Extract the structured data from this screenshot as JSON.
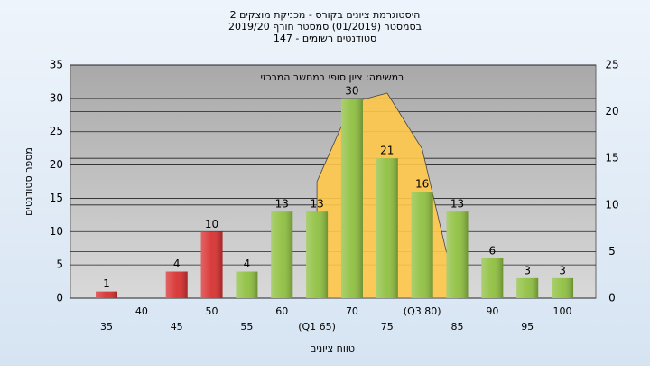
{
  "chart_data": {
    "type": "bar",
    "title": [
      "היסטוגרמת ציונים בקורס - מכניקת מוצקים 2",
      "בסמסטר  (01/2019)  סמסטר חורף 2019/20",
      "סטודנטים רשומים - 147"
    ],
    "annotation": "במשימה: ציון סופי במחשב המרכזי",
    "x_label": "טווח ציונים",
    "y_label": "מספר סטודנטים",
    "categories": [
      "35",
      "40",
      "45",
      "50",
      "55",
      "60",
      "(Q1 65)",
      "70",
      "75",
      "(Q3 80)",
      "85",
      "90",
      "95",
      "100"
    ],
    "series": [
      {
        "values": [
          1,
          0,
          4,
          10,
          4,
          13,
          13,
          30,
          21,
          16,
          13,
          6,
          3,
          3
        ],
        "colors": [
          "#d83030",
          "#d83030",
          "#d83030",
          "#d83030",
          "#8fc040",
          "#8fc040",
          "#8fc040",
          "#8fc040",
          "#8fc040",
          "#8fc040",
          "#8fc040",
          "#8fc040",
          "#8fc040",
          "#8fc040"
        ]
      },
      {
        "type": "area",
        "axis": "y2",
        "color": "#ffc84a",
        "values": [
          null,
          null,
          null,
          null,
          null,
          null,
          12.5,
          21,
          22,
          16,
          0,
          null,
          null,
          null
        ]
      }
    ],
    "ylim": [
      0,
      35
    ],
    "yticks": [
      0,
      5,
      10,
      15,
      20,
      25,
      30,
      35
    ],
    "y2lim": [
      0,
      25
    ],
    "y2ticks": [
      0,
      5,
      10,
      15,
      20,
      25
    ],
    "grid": true
  }
}
